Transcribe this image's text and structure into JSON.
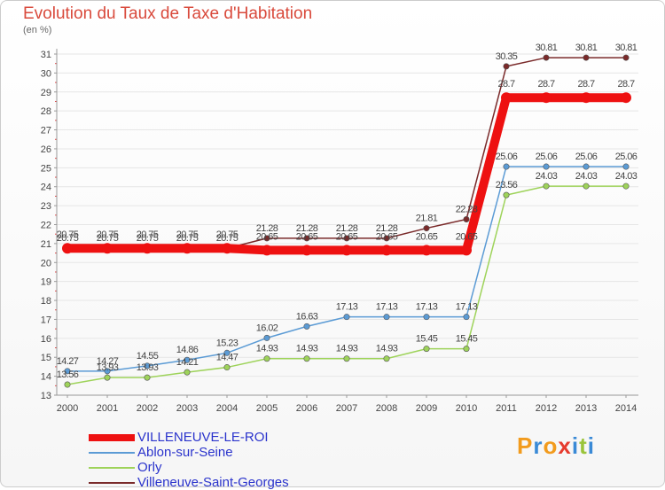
{
  "chart_data": {
    "type": "line",
    "title": "Evolution du Taux de Taxe d'Habitation",
    "subtitle": "(en %)",
    "x": [
      "2000",
      "2001",
      "2002",
      "2003",
      "2004",
      "2005",
      "2006",
      "2007",
      "2008",
      "2009",
      "2010",
      "2011",
      "2012",
      "2013",
      "2014"
    ],
    "ylim": [
      13,
      31
    ],
    "yticks": [
      13,
      14,
      15,
      16,
      17,
      18,
      19,
      20,
      21,
      22,
      23,
      24,
      25,
      26,
      27,
      28,
      29,
      30,
      31
    ],
    "grid": "horizontal",
    "legend_position": "bottom-left",
    "series": [
      {
        "name": "Villeneuve-Saint-Georges",
        "color": "#7a2a2a",
        "labels": [
          "20.75",
          "20.75",
          "20.75",
          "20.75",
          "20.75",
          "21.28",
          "21.28",
          "21.28",
          "21.28",
          "21.81",
          "22.28",
          "30.35",
          "30.81",
          "30.81",
          "30.81"
        ],
        "values": [
          20.75,
          20.75,
          20.75,
          20.75,
          20.75,
          21.28,
          21.28,
          21.28,
          21.28,
          21.81,
          22.28,
          30.35,
          30.81,
          30.81,
          30.81
        ]
      },
      {
        "name": "Ablon-sur-Seine",
        "color": "#5b9bd5",
        "labels": [
          "14.27",
          "14.27",
          "14.55",
          "14.86",
          "15.23",
          "16.02",
          "16.63",
          "17.13",
          "17.13",
          "17.13",
          "17.13",
          "25.06",
          "25.06",
          "25.06",
          "25.06"
        ],
        "values": [
          14.27,
          14.27,
          14.55,
          14.86,
          15.23,
          16.02,
          16.63,
          17.13,
          17.13,
          17.13,
          17.13,
          25.06,
          25.06,
          25.06,
          25.06
        ]
      },
      {
        "name": "Orly",
        "color": "#9ed35a",
        "labels": [
          "13.56",
          "13.93",
          "13.93",
          "14.21",
          "14.47",
          "14.93",
          "14.93",
          "14.93",
          "14.93",
          "15.45",
          "15.45",
          "23.56",
          "24.03",
          "24.03",
          "24.03"
        ],
        "values": [
          13.56,
          13.93,
          13.93,
          14.21,
          14.47,
          14.93,
          14.93,
          14.93,
          14.93,
          15.45,
          15.45,
          23.56,
          24.03,
          24.03,
          24.03
        ]
      },
      {
        "name": "VILLENEUVE-LE-ROI",
        "color": "#ee1111",
        "labels": [
          "20.75",
          "20.75",
          "20.75",
          "20.75",
          "20.75",
          "20.65",
          "20.65",
          "20.65",
          "20.65",
          "20.65",
          "20.65",
          "28.7",
          "28.7",
          "28.7",
          "28.7"
        ],
        "values": [
          20.75,
          20.75,
          20.75,
          20.75,
          20.75,
          20.65,
          20.65,
          20.65,
          20.65,
          20.65,
          20.65,
          28.7,
          28.7,
          28.7,
          28.7
        ]
      }
    ]
  },
  "legend": [
    {
      "label": "VILLENEUVE-LE-ROI",
      "color": "#ee1111"
    },
    {
      "label": "Ablon-sur-Seine",
      "color": "#5b9bd5"
    },
    {
      "label": "Orly",
      "color": "#9ed35a"
    },
    {
      "label": "Villeneuve-Saint-Georges",
      "color": "#7a2a2a"
    }
  ],
  "logo": {
    "text": "Proxiti",
    "colors": [
      "#f29b1d",
      "#3a8ad6",
      "#f29b1d",
      "#e63b2e",
      "#3a8ad6",
      "#9ac43a",
      "#3a8ad6"
    ]
  }
}
